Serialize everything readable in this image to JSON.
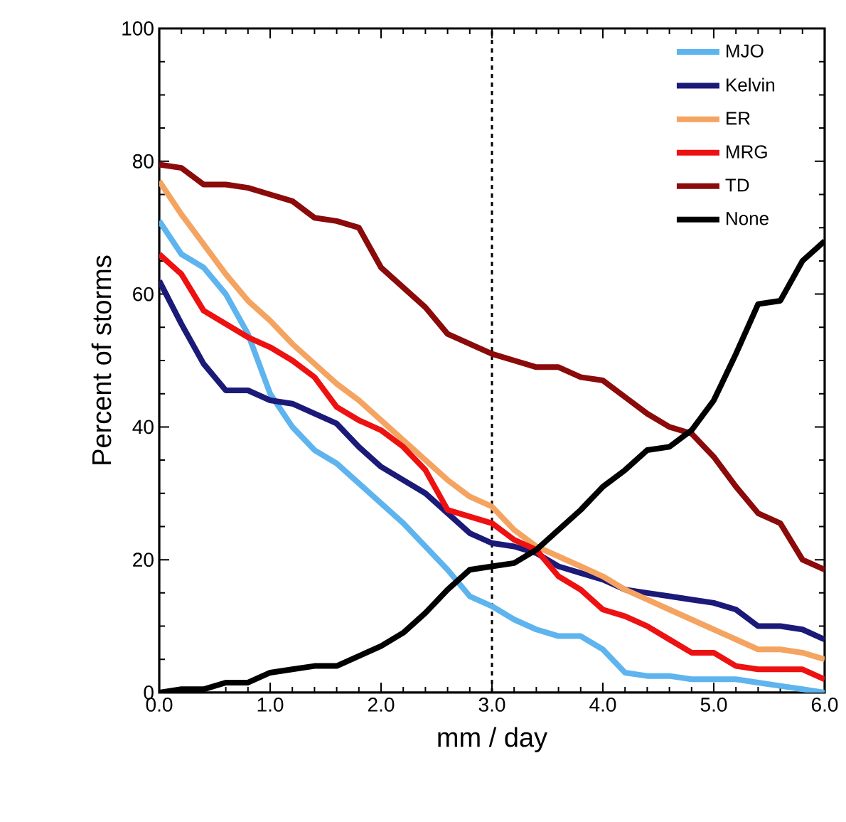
{
  "chart_data": {
    "type": "line",
    "xlabel": "mm / day",
    "ylabel": "Percent of storms",
    "x": [
      0.0,
      0.2,
      0.4,
      0.6,
      0.8,
      1.0,
      1.2,
      1.4,
      1.6,
      1.8,
      2.0,
      2.2,
      2.4,
      2.6,
      2.8,
      3.0,
      3.2,
      3.4,
      3.6,
      3.8,
      4.0,
      4.2,
      4.4,
      4.6,
      4.8,
      5.0,
      5.2,
      5.4,
      5.6,
      5.8,
      6.0
    ],
    "series": [
      {
        "name": "MJO",
        "color": "#5eb4ee",
        "values": [
          71,
          66,
          64,
          60,
          54,
          45,
          40,
          36.5,
          34.5,
          31.5,
          28.5,
          25.5,
          22,
          18.5,
          14.5,
          13,
          11,
          9.5,
          8.5,
          8.5,
          6.5,
          3,
          2.5,
          2.5,
          2,
          2,
          2,
          1.5,
          1,
          0.5,
          0
        ]
      },
      {
        "name": "Kelvin",
        "color": "#1b1a78",
        "values": [
          62,
          55.5,
          49.5,
          45.5,
          45.5,
          44,
          43.5,
          42,
          40.5,
          37,
          34,
          32,
          30,
          27,
          24,
          22.5,
          22,
          21,
          19,
          18,
          17,
          15.5,
          15,
          14.5,
          14,
          13.5,
          12.5,
          10,
          10,
          9.5,
          8
        ]
      },
      {
        "name": "ER",
        "color": "#f4a460",
        "values": [
          77,
          72,
          67.5,
          63,
          59,
          56,
          52.5,
          49.5,
          46.5,
          44,
          41,
          38,
          35,
          32,
          29.5,
          28,
          24.5,
          22,
          20.5,
          19,
          17.5,
          15.5,
          14,
          12.5,
          11,
          9.5,
          8,
          6.5,
          6.5,
          6,
          5
        ]
      },
      {
        "name": "MRG",
        "color": "#ee1111",
        "values": [
          66,
          63,
          57.5,
          55.5,
          53.5,
          52,
          50,
          47.5,
          43,
          41,
          39.5,
          37,
          33.5,
          27.5,
          26.5,
          25.5,
          23,
          21.5,
          17.5,
          15.5,
          12.5,
          11.5,
          10,
          8,
          6,
          6,
          4,
          3.5,
          3.5,
          3.5,
          2
        ]
      },
      {
        "name": "TD",
        "color": "#8b0a0a",
        "values": [
          79.5,
          79,
          76.5,
          76.5,
          76,
          75,
          74,
          71.5,
          71,
          70,
          64,
          61,
          58,
          54,
          52.5,
          51,
          50,
          49,
          49,
          47.5,
          47,
          44.5,
          42,
          40,
          39,
          35.5,
          31,
          27,
          25.5,
          20,
          18.5
        ]
      },
      {
        "name": "None",
        "color": "#000000",
        "values": [
          0,
          0.5,
          0.5,
          1.5,
          1.5,
          3,
          3.5,
          4,
          4,
          5.5,
          7,
          9,
          12,
          15.5,
          18.5,
          19,
          19.5,
          21.5,
          24.5,
          27.5,
          31,
          33.5,
          36.5,
          37,
          39.5,
          44,
          51,
          58.5,
          59,
          65,
          68
        ]
      }
    ],
    "xlim": [
      0,
      6
    ],
    "ylim": [
      0,
      100
    ],
    "xticks": [
      {
        "value": 0,
        "label": "0.0"
      },
      {
        "value": 1,
        "label": "1.0"
      },
      {
        "value": 2,
        "label": "2.0"
      },
      {
        "value": 3,
        "label": "3.0"
      },
      {
        "value": 4,
        "label": "4.0"
      },
      {
        "value": 5,
        "label": "5.0"
      },
      {
        "value": 6,
        "label": "6.0"
      }
    ],
    "yticks": [
      0,
      20,
      40,
      60,
      80,
      100
    ],
    "ref_lines": [
      {
        "axis": "x",
        "value": 3,
        "line_style": "dashed",
        "color": "#000000"
      }
    ],
    "grid": false,
    "legend": "top right",
    "marker": "none",
    "line_style": "solid"
  }
}
